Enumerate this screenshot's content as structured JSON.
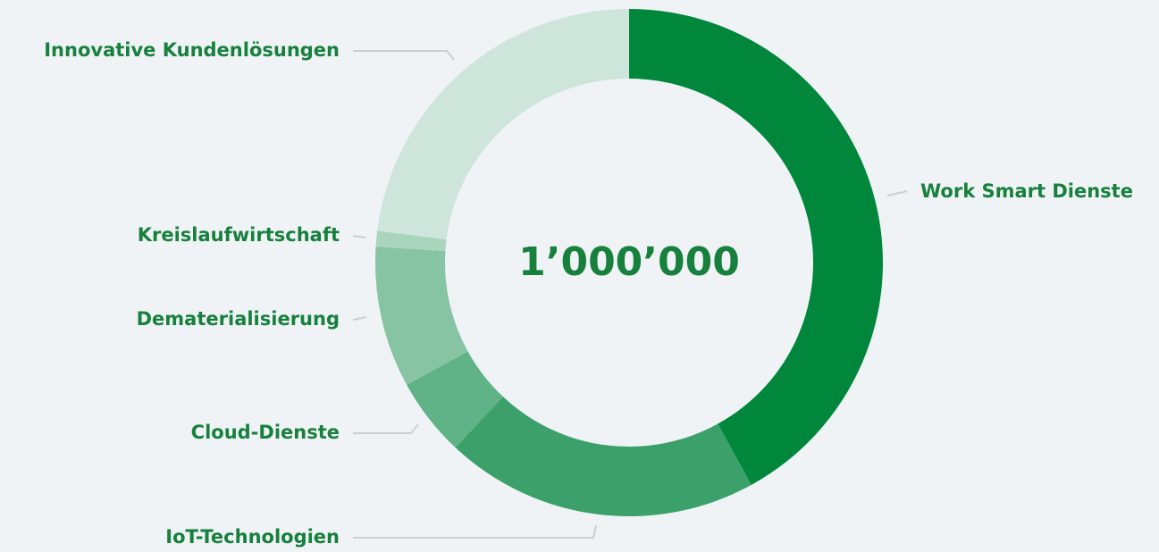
{
  "chart_data": {
    "type": "donut",
    "total_label": "1’000’000",
    "categories": [
      "Work Smart Dienste",
      "IoT-Technologien",
      "Cloud-Dienste",
      "Dematerialisierung",
      "Kreislaufwirtschaft",
      "Innovative Kundenlösungen"
    ],
    "values": [
      42,
      20,
      5,
      9,
      1,
      23
    ],
    "colors": [
      "#00873c",
      "#3ca06a",
      "#5fb386",
      "#86c4a3",
      "#a9d5bd",
      "#cde5da"
    ]
  }
}
